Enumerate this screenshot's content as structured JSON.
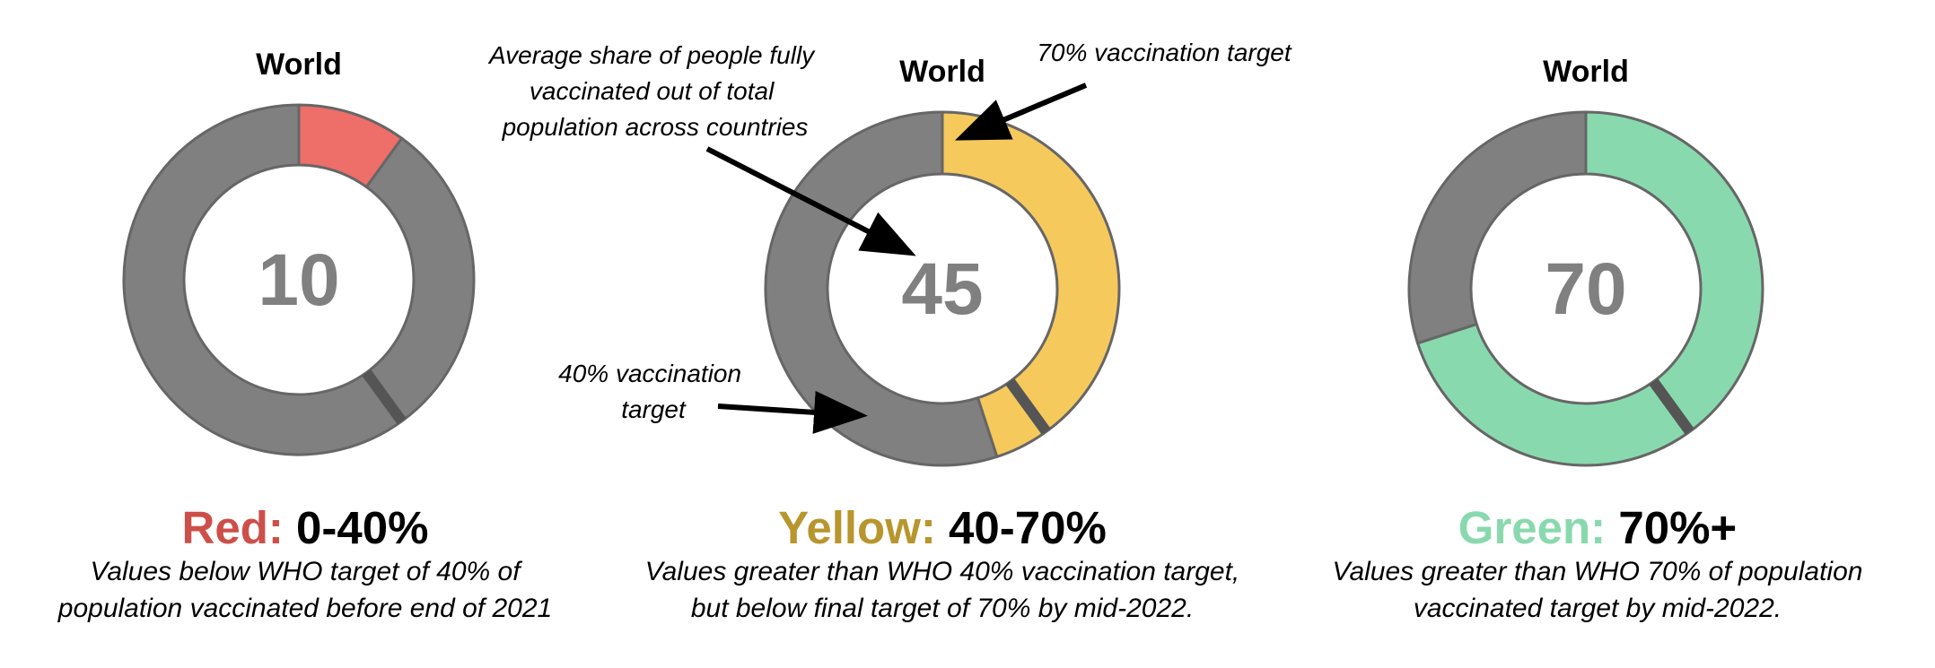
{
  "chart_data": [
    {
      "type": "pie",
      "title": "World",
      "center_value": "10",
      "max": 100,
      "value": 10,
      "colors": {
        "fill": "#ee6e69",
        "remainder": "#808080",
        "target_mark": "#555555"
      },
      "target_marker": 40,
      "legend": {
        "label": "Red:",
        "range": "0-40%",
        "label_color": "#cd4f4a"
      },
      "description": [
        "Values below WHO target of 40% of",
        "population vaccinated before end of 2021"
      ]
    },
    {
      "type": "pie",
      "title": "World",
      "center_value": "45",
      "max": 100,
      "value": 45,
      "colors": {
        "fill": "#f5c95c",
        "remainder": "#808080",
        "target_mark": "#555555"
      },
      "target_marker": 40,
      "legend": {
        "label": "Yellow:",
        "range": "40-70%",
        "label_color": "#b8962e"
      },
      "description": [
        "Values greater than WHO 40% vaccination target,",
        "but below final target of 70% by mid-2022."
      ],
      "annotations": [
        {
          "lines": [
            "Average share of people fully",
            "vaccinated out of total",
            "population across countries"
          ],
          "points_to": "center value"
        },
        {
          "lines": [
            "70% vaccination target"
          ],
          "points_to": 70
        },
        {
          "lines": [
            "40% vaccination",
            "target"
          ],
          "points_to": 40
        }
      ]
    },
    {
      "type": "pie",
      "title": "World",
      "center_value": "70",
      "max": 100,
      "value": 70,
      "colors": {
        "fill": "#89d9ae",
        "remainder": "#808080",
        "target_mark": "#555555"
      },
      "target_marker": 40,
      "legend": {
        "label": "Green:",
        "range": "70%+",
        "label_color": "#89d9ae"
      },
      "description": [
        "Values greater than WHO 70% of population",
        "vaccinated target by mid-2022."
      ]
    }
  ]
}
